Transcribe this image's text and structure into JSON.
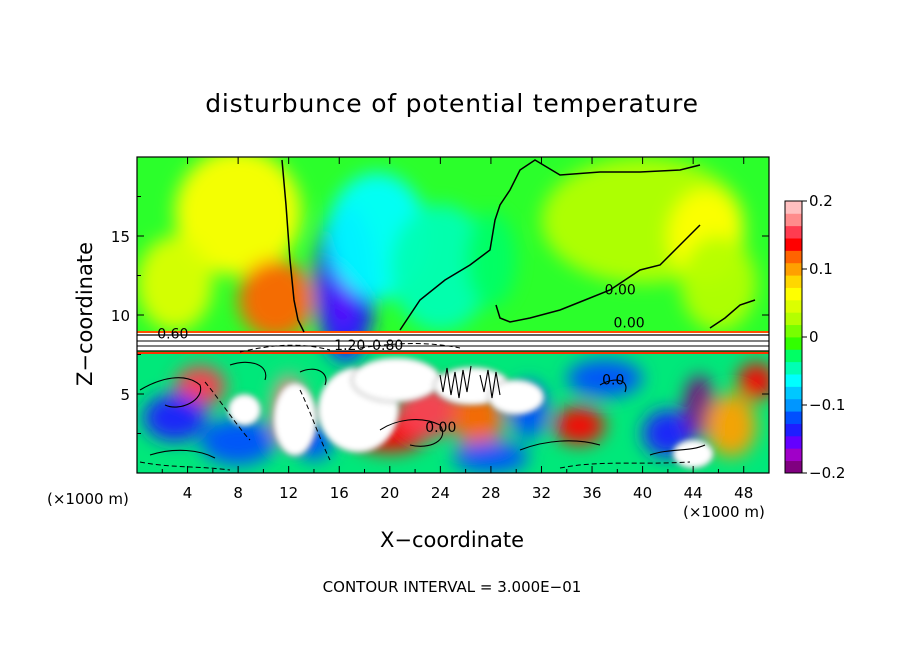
{
  "chart_data": {
    "type": "heatmap",
    "title": "disturbunce of potential temperature",
    "xlabel": "X−coordinate",
    "ylabel": "Z−coordinate",
    "x_unit_left": "(×1000 m)",
    "x_unit_right": "(×1000 m)",
    "footer": "CONTOUR INTERVAL = 3.000E−01",
    "xlim": [
      0,
      50
    ],
    "ylim": [
      0,
      20
    ],
    "x_ticks": [
      4,
      8,
      12,
      16,
      20,
      24,
      28,
      32,
      36,
      40,
      44,
      48
    ],
    "x_tick_labels": [
      "4",
      "8",
      "12",
      "16",
      "20",
      "24",
      "28",
      "32",
      "36",
      "40",
      "44",
      "48"
    ],
    "y_ticks": [
      5,
      10,
      15
    ],
    "y_tick_labels": [
      "5",
      "10",
      "15"
    ],
    "colorbar": {
      "min": -0.2,
      "max": 0.2,
      "ticks": [
        0.2,
        0.1,
        0,
        -0.1,
        -0.2
      ],
      "tick_labels": [
        "0.2",
        "0.1",
        "0",
        "−0.1",
        "−0.2"
      ],
      "colors": [
        "#800080",
        "#a000c8",
        "#6400ff",
        "#1e1eff",
        "#0050ff",
        "#0096ff",
        "#00c8ff",
        "#00ffff",
        "#00ffb4",
        "#00ff64",
        "#32ff00",
        "#78ff00",
        "#b4ff00",
        "#dcff00",
        "#ffff00",
        "#ffd700",
        "#ffa000",
        "#ff6400",
        "#ff0000",
        "#ff3c50",
        "#ff8c8c",
        "#ffc0c0"
      ]
    },
    "contour_labels": [
      {
        "text": "0.60",
        "x": 1.6,
        "z": 8.5
      },
      {
        "text": "1.20",
        "x": 15.6,
        "z": 7.8
      },
      {
        "text": "0.80",
        "x": 18.6,
        "z": 7.8
      },
      {
        "text": "0.00",
        "x": 37.0,
        "z": 11.3
      },
      {
        "text": "0.00",
        "x": 37.7,
        "z": 9.2
      },
      {
        "text": "0.00",
        "x": 22.8,
        "z": 2.6
      },
      {
        "text": "0.0",
        "x": 36.8,
        "z": 5.6
      }
    ],
    "fields": [
      {
        "x": 8,
        "z": 16.5,
        "value": 0.06,
        "rx": 5,
        "rz": 4
      },
      {
        "x": 11,
        "z": 11,
        "value": 0.12,
        "rx": 3,
        "rz": 2.5
      },
      {
        "x": 3,
        "z": 12,
        "value": 0.05,
        "rx": 3,
        "rz": 3
      },
      {
        "x": 16.5,
        "z": 12,
        "value": -0.13,
        "rx": 2.4,
        "rz": 5
      },
      {
        "x": 16.3,
        "z": 12.5,
        "value": -0.16,
        "rx": 0.9,
        "rz": 3.5
      },
      {
        "x": 19,
        "z": 15,
        "value": -0.07,
        "rx": 4,
        "rz": 4
      },
      {
        "x": 24,
        "z": 13,
        "value": -0.04,
        "rx": 4,
        "rz": 4
      },
      {
        "x": 28,
        "z": 13.5,
        "value": -0.03,
        "rx": 2,
        "rz": 3
      },
      {
        "x": 40,
        "z": 16,
        "value": 0.02,
        "rx": 8,
        "rz": 4
      },
      {
        "x": 45,
        "z": 15,
        "value": 0.07,
        "rx": 3,
        "rz": 3
      },
      {
        "x": 46,
        "z": 12,
        "value": 0.03,
        "rx": 3,
        "rz": 3
      },
      {
        "x": 5,
        "z": 5.5,
        "value": 0.16,
        "rx": 2,
        "rz": 1.3
      },
      {
        "x": 3,
        "z": 3.5,
        "value": -0.13,
        "rx": 2.5,
        "rz": 1.5
      },
      {
        "x": 8,
        "z": 2,
        "value": -0.12,
        "rx": 3,
        "rz": 1.5
      },
      {
        "x": 12,
        "z": 4,
        "value": 0.18,
        "rx": 1.3,
        "rz": 2.2
      },
      {
        "x": 14,
        "z": 2,
        "value": -0.12,
        "rx": 1.5,
        "rz": 1.2
      },
      {
        "x": 20,
        "z": 2.5,
        "value": 0.13,
        "rx": 3,
        "rz": 1.2
      },
      {
        "x": 23,
        "z": 4,
        "value": 0.15,
        "rx": 2.5,
        "rz": 1.8
      },
      {
        "x": 27,
        "z": 3.5,
        "value": 0.11,
        "rx": 2,
        "rz": 2
      },
      {
        "x": 28,
        "z": 1,
        "value": -0.12,
        "rx": 3,
        "rz": 1
      },
      {
        "x": 31,
        "z": 4,
        "value": -0.11,
        "rx": 1.5,
        "rz": 1.8
      },
      {
        "x": 35,
        "z": 3,
        "value": 0.14,
        "rx": 2,
        "rz": 1.2
      },
      {
        "x": 37,
        "z": 6,
        "value": -0.11,
        "rx": 3,
        "rz": 1.2
      },
      {
        "x": 42,
        "z": 2.5,
        "value": -0.13,
        "rx": 2,
        "rz": 1.5
      },
      {
        "x": 44.5,
        "z": 4.2,
        "value": -0.19,
        "rx": 1.2,
        "rz": 2
      },
      {
        "x": 47,
        "z": 3,
        "value": 0.1,
        "rx": 2,
        "rz": 2
      },
      {
        "x": 49,
        "z": 5.8,
        "value": 0.13,
        "rx": 1.5,
        "rz": 1.2
      }
    ],
    "white_regions": [
      {
        "x": 12.5,
        "z": 3.4,
        "rx": 1.7,
        "rz": 2.3
      },
      {
        "x": 17.5,
        "z": 4.0,
        "rx": 3.2,
        "rz": 2.7
      },
      {
        "x": 20.5,
        "z": 5.9,
        "rx": 3.5,
        "rz": 1.4
      },
      {
        "x": 26.5,
        "z": 5.5,
        "rx": 3.0,
        "rz": 1.2
      },
      {
        "x": 30,
        "z": 4.8,
        "rx": 2.2,
        "rz": 1.1
      },
      {
        "x": 8.5,
        "z": 4.0,
        "rx": 1.3,
        "rz": 1.0
      },
      {
        "x": 44,
        "z": 1.2,
        "rx": 1.6,
        "rz": 0.9
      }
    ]
  }
}
